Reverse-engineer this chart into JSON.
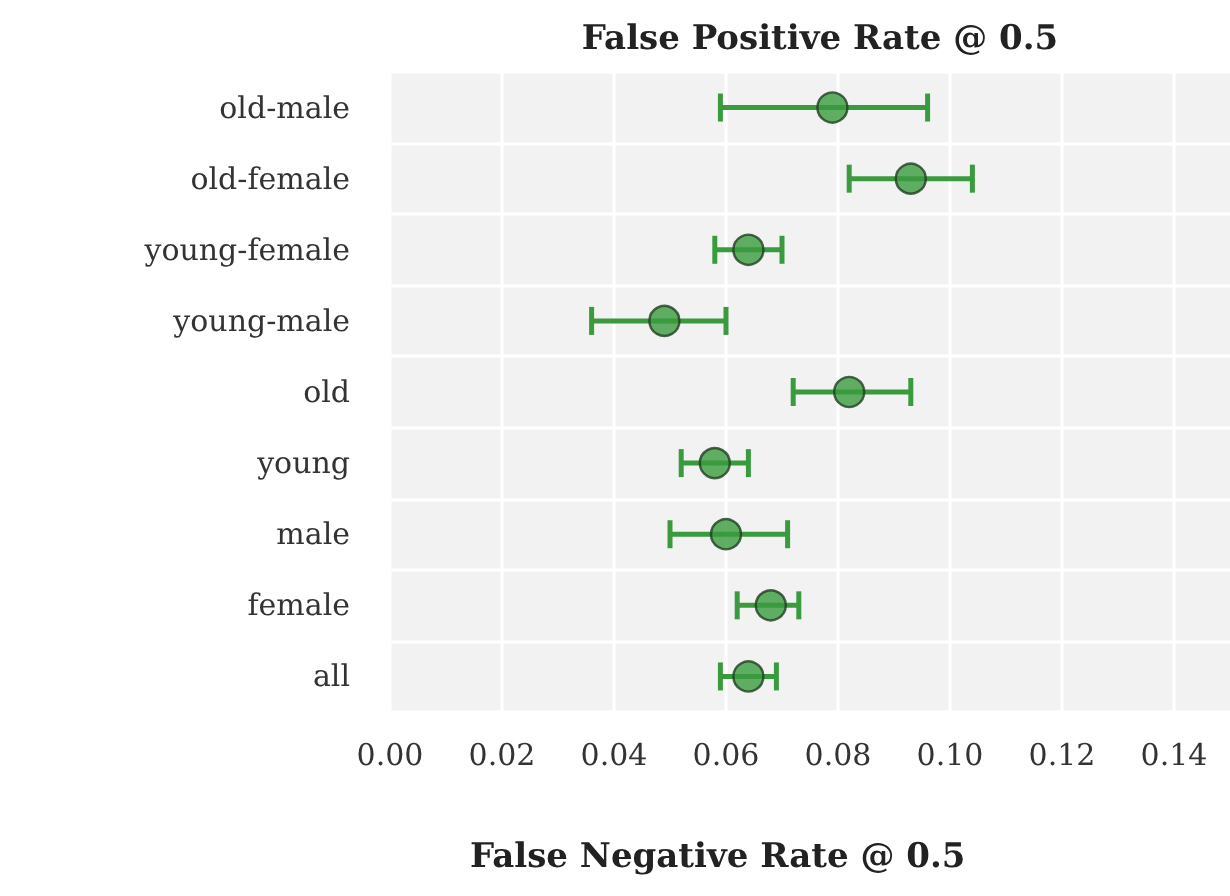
{
  "chart_data": {
    "type": "scatter",
    "orientation": "horizontal",
    "title": "False Positive Rate @ 0.5",
    "categories": [
      "old-male",
      "old-female",
      "young-female",
      "young-male",
      "old",
      "young",
      "male",
      "female",
      "all"
    ],
    "values": [
      0.079,
      0.093,
      0.064,
      0.049,
      0.082,
      0.058,
      0.06,
      0.068,
      0.064
    ],
    "errors": [
      [
        0.059,
        0.096
      ],
      [
        0.082,
        0.104
      ],
      [
        0.058,
        0.07
      ],
      [
        0.036,
        0.06
      ],
      [
        0.072,
        0.093
      ],
      [
        0.052,
        0.064
      ],
      [
        0.05,
        0.071
      ],
      [
        0.062,
        0.073
      ],
      [
        0.059,
        0.069
      ]
    ],
    "color": "#3a9a3e",
    "xlim": [
      0,
      0.15
    ],
    "xticks": [
      {
        "value": 0,
        "label": "0.00"
      },
      {
        "value": 0.02,
        "label": "0.02"
      },
      {
        "value": 0.04,
        "label": "0.04"
      },
      {
        "value": 0.06,
        "label": "0.06"
      },
      {
        "value": 0.08,
        "label": "0.08"
      },
      {
        "value": 0.1,
        "label": "0.10"
      },
      {
        "value": 0.12,
        "label": "0.12"
      },
      {
        "value": 0.14,
        "label": "0.14"
      }
    ],
    "grid": true,
    "marker": "circle",
    "annotations": [
      "False Negative Rate @ 0.5"
    ]
  }
}
